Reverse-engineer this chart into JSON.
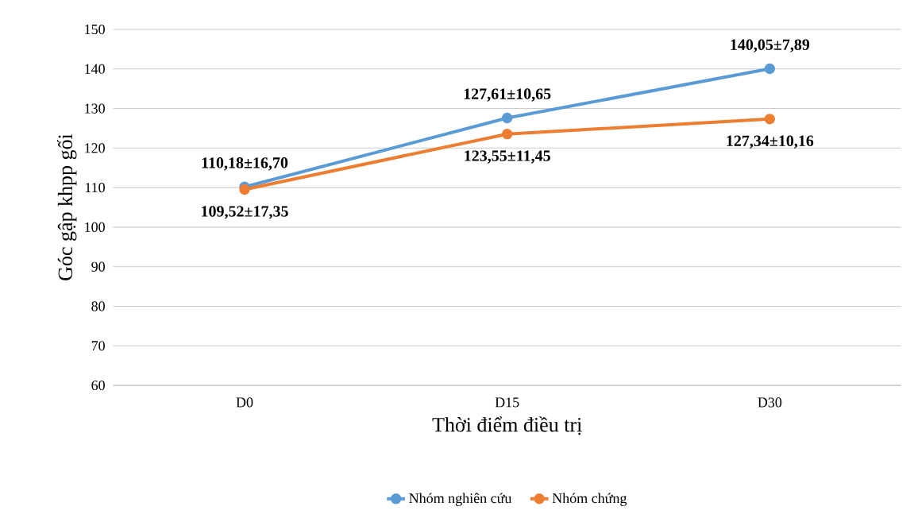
{
  "chart_data": {
    "type": "line",
    "xlabel": "Thời điểm điều trị",
    "ylabel": "Góc gập khpp gối",
    "categories": [
      "D0",
      "D15",
      "D30"
    ],
    "series": [
      {
        "name": "Nhóm nghiên cứu",
        "color": "#5b9bd5",
        "values": [
          110.18,
          127.61,
          140.05
        ],
        "value_labels": [
          "110,18±16,70",
          "127,61±10,65",
          "140,05±7,89"
        ]
      },
      {
        "name": "Nhóm chứng",
        "color": "#ed7d31",
        "values": [
          109.52,
          123.55,
          127.34
        ],
        "value_labels": [
          "109,52±17,35",
          "123,55±11,45",
          "127,34±10,16"
        ]
      }
    ],
    "ylim": [
      60,
      150
    ],
    "yticks": [
      60,
      70,
      80,
      90,
      100,
      110,
      120,
      130,
      140,
      150
    ],
    "grid": "y",
    "legend": "bottom",
    "marker": "circle",
    "line_style": "solid"
  }
}
